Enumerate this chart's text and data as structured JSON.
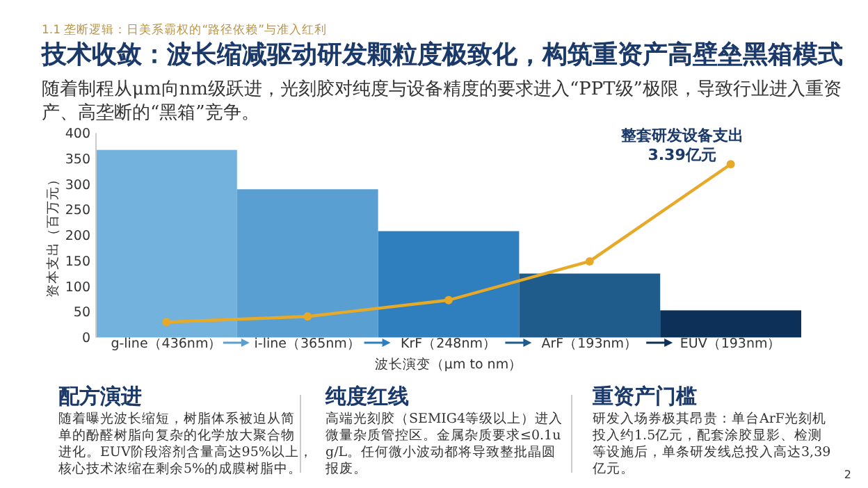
{
  "chart_data": {
    "type": "bar",
    "title": "技术收敛：波长缩减驱动研发颗粒度极致化，构筑重资产高壁垒黑箱模式",
    "subtitle": "随着制程从μm向nm级跃进，光刻胶对纯度与设备精度的要求进入“PPT级”极限，导致行业进入重资产、高垄断的“黑箱”竞争。",
    "xlabel": "波长演变（μm to nm）",
    "ylabel": "资本支出（百万元）",
    "categories": [
      "g-line（436nm）",
      "i-line（365nm）",
      "KrF（248nm）",
      "ArF（193nm）",
      "EUV（193nm）"
    ],
    "series": [
      {
        "colors": [
          "#72b2dd",
          "#5a9fd2",
          "#2f7fbf",
          "#1f5c8c",
          "#0d3059"
        ],
        "values": [
          367,
          290,
          208,
          125,
          53
        ]
      },
      {
        "type": "line",
        "color": "#e6a928",
        "values": [
          30,
          41,
          73,
          149,
          339
        ]
      }
    ],
    "ylim": [
      0,
      400
    ],
    "yticks": [
      0,
      50,
      100,
      150,
      200,
      250,
      300,
      350,
      400
    ],
    "grid": false,
    "marker": "circle",
    "line_style": "solid",
    "annotations": [
      "1.1 垄断逻辑：日美系霸权的“路径依赖”与准入红利",
      {
        "text": "整套研发设备支出\n3.39亿元",
        "x": "EUV（193nm）",
        "y": 339
      },
      "配方演进",
      "随着曝光波长缩短，树脂体系被迫从简单的酚醛树脂向复杂的化学放大聚合物进化。EUV阶段溶剂含量高达95%以上，核心技术浓缩在剩余5%的成膜树脂中。",
      "纯度红线",
      "高端光刻胶（SEMIG4等级以上）进入微量杂质管控区。金属杂质要求≤0.1ug/L。任何微小波动都将导致整批晶圆报废。",
      "重资产门槛",
      "研发入场券极其昂贵：单台ArF光刻机投入约1.5亿元，配套涂胶显影、检测等设施后，单条研发线总投入高达3,39亿元。",
      "2"
    ]
  }
}
